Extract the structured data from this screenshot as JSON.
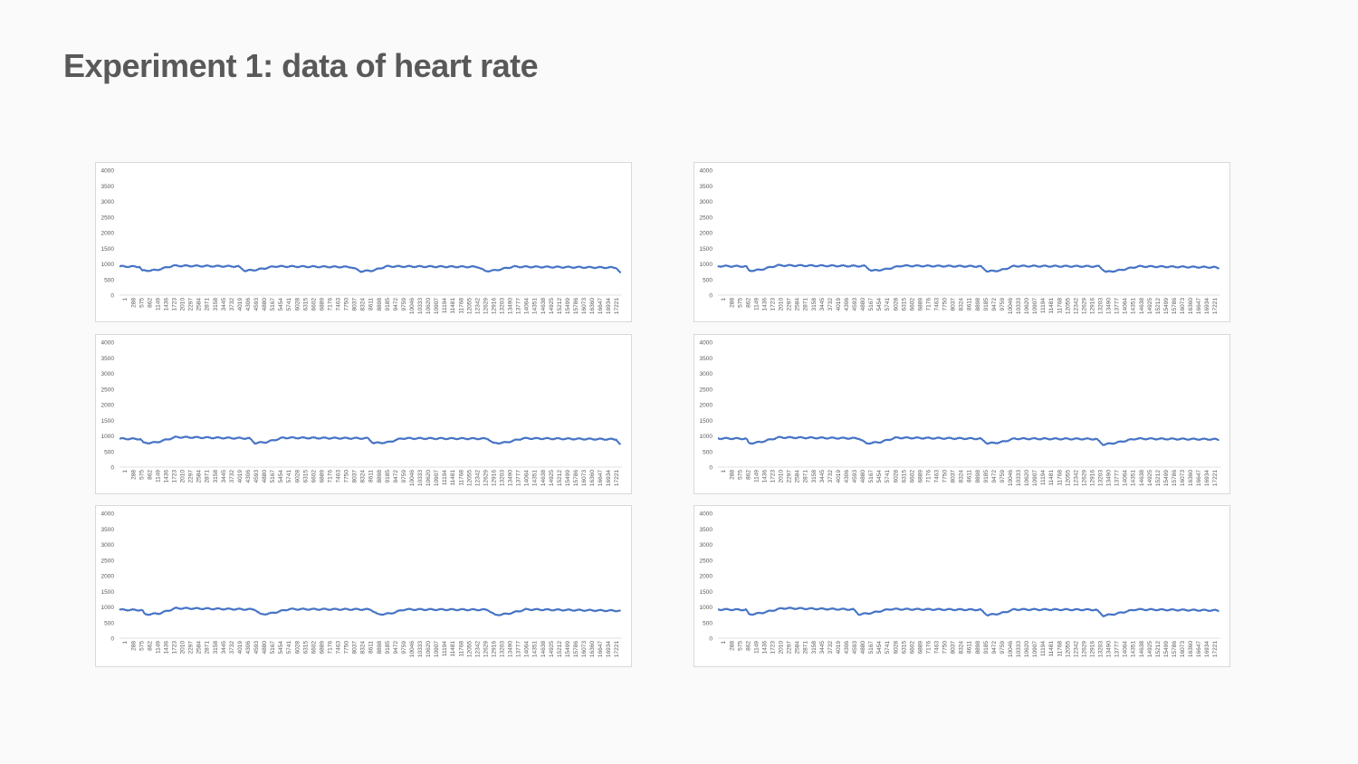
{
  "slide": {
    "title": "Experiment 1: data of heart rate"
  },
  "colors": {
    "series": "#4472c4",
    "gridline": "#d9d9d9",
    "text": "#595959"
  },
  "chart_data": [
    {
      "type": "line",
      "title": "",
      "xlabel": "",
      "ylabel": "",
      "ylim": [
        0,
        4000
      ],
      "yticks": [
        "0",
        "500",
        "1000",
        "1500",
        "2000",
        "2500",
        "3000",
        "3500",
        "4000"
      ],
      "xticks": [
        "1",
        "288",
        "575",
        "862",
        "1149",
        "1436",
        "1723",
        "2010",
        "2297",
        "2584",
        "2871",
        "3158",
        "3445",
        "3732",
        "4019",
        "4306",
        "4593",
        "4880",
        "5167",
        "5454",
        "5741",
        "6028",
        "6315",
        "6602",
        "6889",
        "7176",
        "7463",
        "7750",
        "8037",
        "8324",
        "8611",
        "8898",
        "9185",
        "9472",
        "9759",
        "10046",
        "10333",
        "10620",
        "10907",
        "11194",
        "11481",
        "11768",
        "12055",
        "12342",
        "12629",
        "12916",
        "13203",
        "13490",
        "13777",
        "14064",
        "14351",
        "14638",
        "14925",
        "15212",
        "15499",
        "15786",
        "16073",
        "16360",
        "16647",
        "16934",
        "17221"
      ],
      "series": [
        {
          "x": [
            1,
            720,
            800,
            1300,
            1900,
            4200,
            4450,
            4850,
            5500,
            8200,
            8550,
            9000,
            9450,
            12700,
            12950,
            13300,
            13950,
            17600,
            17750
          ],
          "values": [
            920,
            910,
            780,
            800,
            940,
            920,
            780,
            810,
            920,
            900,
            760,
            790,
            920,
            905,
            770,
            790,
            910,
            880,
            700
          ]
        }
      ]
    },
    {
      "type": "line",
      "title": "",
      "xlabel": "",
      "ylabel": "",
      "ylim": [
        0,
        4000
      ],
      "yticks": [
        "0",
        "500",
        "1000",
        "1500",
        "2000",
        "2500",
        "3000",
        "3500",
        "4000"
      ],
      "xticks": [
        "1",
        "288",
        "575",
        "862",
        "1149",
        "1436",
        "1723",
        "2010",
        "2297",
        "2584",
        "2871",
        "3158",
        "3445",
        "3732",
        "4019",
        "4306",
        "4593",
        "4880",
        "5167",
        "5454",
        "5741",
        "6028",
        "6315",
        "6602",
        "6889",
        "7176",
        "7463",
        "7750",
        "8037",
        "8324",
        "8611",
        "8898",
        "9185",
        "9472",
        "9759",
        "10046",
        "10333",
        "10620",
        "10907",
        "11194",
        "11481",
        "11768",
        "12055",
        "12342",
        "12629",
        "12916",
        "13203",
        "13490",
        "13777",
        "14064",
        "14351",
        "14638",
        "14925",
        "15212",
        "15499",
        "15786",
        "16073",
        "16360",
        "16647",
        "16934",
        "17221"
      ],
      "series": [
        {
          "x": [
            1,
            1000,
            1100,
            1500,
            2100,
            5200,
            5450,
            5900,
            6500,
            9300,
            9550,
            10000,
            10500,
            13500,
            13750,
            14200,
            14900,
            17600,
            17750
          ],
          "values": [
            930,
            920,
            780,
            810,
            950,
            930,
            780,
            820,
            940,
            920,
            760,
            790,
            930,
            920,
            740,
            790,
            920,
            890,
            860
          ]
        }
      ]
    },
    {
      "type": "line",
      "title": "",
      "xlabel": "",
      "ylabel": "",
      "ylim": [
        0,
        4000
      ],
      "yticks": [
        "0",
        "500",
        "1000",
        "1500",
        "2000",
        "2500",
        "3000",
        "3500",
        "4000"
      ],
      "xticks": [
        "1",
        "288",
        "575",
        "862",
        "1149",
        "1436",
        "1723",
        "2010",
        "2297",
        "2584",
        "2871",
        "3158",
        "3445",
        "3732",
        "4019",
        "4306",
        "4593",
        "4880",
        "5167",
        "5454",
        "5741",
        "6028",
        "6315",
        "6602",
        "6889",
        "7176",
        "7463",
        "7750",
        "8037",
        "8324",
        "8611",
        "8898",
        "9185",
        "9472",
        "9759",
        "10046",
        "10333",
        "10620",
        "10907",
        "11194",
        "11481",
        "11768",
        "12055",
        "12342",
        "12629",
        "12916",
        "13203",
        "13490",
        "13777",
        "14064",
        "14351",
        "14638",
        "14925",
        "15212",
        "15499",
        "15786",
        "16073",
        "16360",
        "16647",
        "16934",
        "17221"
      ],
      "series": [
        {
          "x": [
            1,
            750,
            850,
            1300,
            2000,
            4600,
            4800,
            5200,
            5800,
            8800,
            9000,
            9500,
            10000,
            13050,
            13250,
            13700,
            14300,
            17600,
            17750
          ],
          "values": [
            910,
            900,
            770,
            790,
            960,
            920,
            770,
            800,
            940,
            920,
            770,
            790,
            920,
            910,
            760,
            790,
            920,
            890,
            700
          ]
        }
      ]
    },
    {
      "type": "line",
      "title": "",
      "xlabel": "",
      "ylabel": "",
      "ylim": [
        0,
        4000
      ],
      "yticks": [
        "0",
        "500",
        "1000",
        "1500",
        "2000",
        "2500",
        "3000",
        "3500",
        "4000"
      ],
      "xticks": [
        "1",
        "288",
        "575",
        "862",
        "1149",
        "1436",
        "1723",
        "2010",
        "2297",
        "2584",
        "2871",
        "3158",
        "3445",
        "3732",
        "4019",
        "4306",
        "4593",
        "4880",
        "5167",
        "5454",
        "5741",
        "6028",
        "6315",
        "6602",
        "6889",
        "7176",
        "7463",
        "7750",
        "8037",
        "8324",
        "8611",
        "8898",
        "9185",
        "9472",
        "9759",
        "10046",
        "10333",
        "10620",
        "10907",
        "11194",
        "11481",
        "11768",
        "12055",
        "12342",
        "12629",
        "12916",
        "13203",
        "13490",
        "13777",
        "14064",
        "14351",
        "14638",
        "14925",
        "15212",
        "15499",
        "15786",
        "16073",
        "16360",
        "16647",
        "16934",
        "17221"
      ],
      "series": [
        {
          "x": [
            1,
            1000,
            1100,
            1500,
            2150,
            5000,
            5250,
            5750,
            6300,
            9300,
            9550,
            10000,
            10500,
            13400,
            13650,
            14100,
            14800,
            17600,
            17750
          ],
          "values": [
            920,
            910,
            760,
            800,
            950,
            920,
            760,
            800,
            940,
            910,
            760,
            790,
            910,
            900,
            720,
            780,
            910,
            890,
            880
          ]
        }
      ]
    },
    {
      "type": "line",
      "title": "",
      "xlabel": "",
      "ylabel": "",
      "ylim": [
        0,
        4000
      ],
      "yticks": [
        "0",
        "500",
        "1000",
        "1500",
        "2000",
        "2500",
        "3000",
        "3500",
        "4000"
      ],
      "xticks": [
        "1",
        "288",
        "575",
        "862",
        "1149",
        "1436",
        "1723",
        "2010",
        "2297",
        "2584",
        "2871",
        "3158",
        "3445",
        "3732",
        "4019",
        "4306",
        "4593",
        "4880",
        "5167",
        "5454",
        "5741",
        "6028",
        "6315",
        "6602",
        "6889",
        "7176",
        "7463",
        "7750",
        "8037",
        "8324",
        "8611",
        "8898",
        "9185",
        "9472",
        "9759",
        "10046",
        "10333",
        "10620",
        "10907",
        "11194",
        "11481",
        "11768",
        "12055",
        "12342",
        "12629",
        "12916",
        "13203",
        "13490",
        "13777",
        "14064",
        "14351",
        "14638",
        "14925",
        "15212",
        "15499",
        "15786",
        "16073",
        "16360",
        "16647",
        "16934",
        "17221"
      ],
      "series": [
        {
          "x": [
            1,
            800,
            900,
            1400,
            2000,
            4800,
            5000,
            5400,
            6000,
            8900,
            9150,
            9600,
            10100,
            13050,
            13300,
            13750,
            14400,
            17600,
            17750
          ],
          "values": [
            910,
            900,
            760,
            790,
            960,
            920,
            760,
            800,
            930,
            920,
            760,
            790,
            920,
            910,
            740,
            780,
            920,
            880,
            880
          ]
        }
      ]
    },
    {
      "type": "line",
      "title": "",
      "xlabel": "",
      "ylabel": "",
      "ylim": [
        0,
        4000
      ],
      "yticks": [
        "0",
        "500",
        "1000",
        "1500",
        "2000",
        "2500",
        "3000",
        "3500",
        "4000"
      ],
      "xticks": [
        "1",
        "288",
        "575",
        "862",
        "1149",
        "1436",
        "1723",
        "2010",
        "2297",
        "2584",
        "2871",
        "3158",
        "3445",
        "3732",
        "4019",
        "4306",
        "4593",
        "4880",
        "5167",
        "5454",
        "5741",
        "6028",
        "6315",
        "6602",
        "6889",
        "7176",
        "7463",
        "7750",
        "8037",
        "8324",
        "8611",
        "8898",
        "9185",
        "9472",
        "9759",
        "10046",
        "10333",
        "10620",
        "10907",
        "11194",
        "11481",
        "11768",
        "12055",
        "12342",
        "12629",
        "12916",
        "13203",
        "13490",
        "13777",
        "14064",
        "14351",
        "14638",
        "14925",
        "15212",
        "15499",
        "15786",
        "16073",
        "16360",
        "16647",
        "16934",
        "17221"
      ],
      "series": [
        {
          "x": [
            1,
            1000,
            1100,
            1500,
            2300,
            4800,
            5000,
            5450,
            6100,
            9300,
            9550,
            10000,
            10500,
            13400,
            13650,
            14100,
            14800,
            17600,
            17750
          ],
          "values": [
            920,
            910,
            760,
            800,
            960,
            920,
            760,
            810,
            930,
            910,
            740,
            790,
            920,
            910,
            720,
            780,
            920,
            890,
            880
          ]
        }
      ]
    }
  ]
}
